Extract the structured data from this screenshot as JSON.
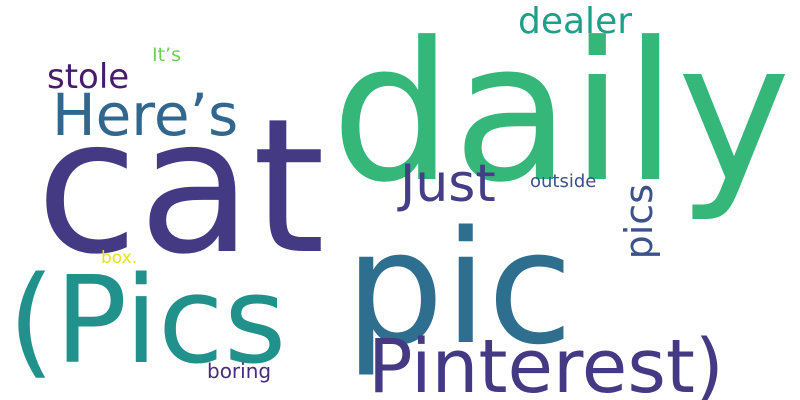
{
  "word_cloud": {
    "background": "#ffffff",
    "words": [
      {
        "text": "daily",
        "color": "#35b779",
        "orientation": "horizontal"
      },
      {
        "text": "cat",
        "color": "#443a83",
        "orientation": "horizontal"
      },
      {
        "text": "pic",
        "color": "#2e6e8e",
        "orientation": "horizontal"
      },
      {
        "text": "(Pics",
        "color": "#21918c",
        "orientation": "horizontal"
      },
      {
        "text": "Pinterest)",
        "color": "#443983",
        "orientation": "horizontal"
      },
      {
        "text": "Here’s",
        "color": "#31668e",
        "orientation": "horizontal"
      },
      {
        "text": "Just",
        "color": "#433e85",
        "orientation": "horizontal"
      },
      {
        "text": "dealer",
        "color": "#1f9e89",
        "orientation": "horizontal"
      },
      {
        "text": "stole",
        "color": "#481b6d",
        "orientation": "horizontal"
      },
      {
        "text": "pics",
        "color": "#3b528b",
        "orientation": "vertical"
      },
      {
        "text": "outside",
        "color": "#3b528b",
        "orientation": "horizontal"
      },
      {
        "text": "boring",
        "color": "#472d7b",
        "orientation": "horizontal"
      },
      {
        "text": "It’s",
        "color": "#6ece58",
        "orientation": "horizontal"
      },
      {
        "text": "box.",
        "color": "#e5e419",
        "orientation": "horizontal"
      }
    ]
  }
}
